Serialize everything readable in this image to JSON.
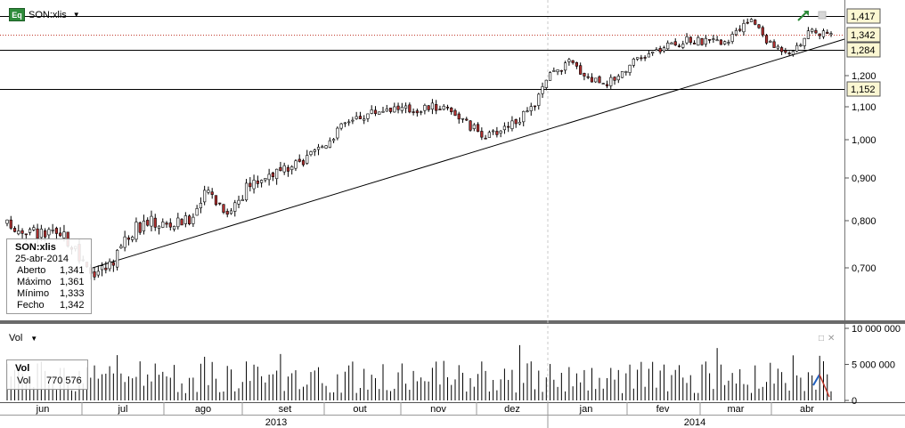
{
  "header": {
    "badge": "Eq",
    "symbol": "SON:xlis"
  },
  "volume_panel": {
    "label": "Vol"
  },
  "info_box": {
    "title": "SON:xlis",
    "date": "25-abr-2014",
    "rows": [
      {
        "label": "Aberto",
        "value": "1,341"
      },
      {
        "label": "Máximo",
        "value": "1,361"
      },
      {
        "label": "Mínimo",
        "value": "1,333"
      },
      {
        "label": "Fecho",
        "value": "1,342"
      }
    ]
  },
  "vol_box": {
    "title": "Vol",
    "label": "Vol",
    "value": "770 576"
  },
  "chart_data": {
    "type": "candlestick",
    "price_axis": {
      "ticks": [
        {
          "value": 0.7,
          "label": "0,700"
        },
        {
          "value": 0.8,
          "label": "0,800"
        },
        {
          "value": 0.9,
          "label": "0,900"
        },
        {
          "value": 1.0,
          "label": "1,000"
        },
        {
          "value": 1.1,
          "label": "1,100"
        },
        {
          "value": 1.2,
          "label": "1,200"
        }
      ]
    },
    "volume_axis": {
      "ticks": [
        {
          "value": 0,
          "label": "0"
        },
        {
          "value": 5000000,
          "label": "5 000 000"
        },
        {
          "value": 10000000,
          "label": "10 000 000"
        }
      ]
    },
    "level_markers": [
      {
        "value": 1.417,
        "label": "1,417"
      },
      {
        "value": 1.342,
        "label": "1,342"
      },
      {
        "value": 1.284,
        "label": "1,284"
      },
      {
        "value": 1.152,
        "label": "1,152"
      }
    ],
    "months": [
      "jun",
      "jul",
      "ago",
      "set",
      "out",
      "nov",
      "dez",
      "jan",
      "fev",
      "mar",
      "abr"
    ],
    "years": [
      "2013",
      "2014"
    ],
    "trendline": {
      "from": {
        "month": "jun",
        "value": 0.72
      },
      "to": {
        "month": "abr",
        "value": 1.31
      }
    },
    "last_close": 1.342,
    "price_anchor_path": [
      0.79,
      0.78,
      0.77,
      0.76,
      0.69,
      0.7,
      0.77,
      0.8,
      0.79,
      0.8,
      0.87,
      0.82,
      0.88,
      0.91,
      0.92,
      0.95,
      1.0,
      1.06,
      1.08,
      1.1,
      1.09,
      1.1,
      1.1,
      1.04,
      1.01,
      1.05,
      1.08,
      1.2,
      1.25,
      1.19,
      1.18,
      1.24,
      1.28,
      1.31,
      1.33,
      1.32,
      1.33,
      1.41,
      1.31,
      1.29,
      1.36,
      1.342
    ]
  }
}
